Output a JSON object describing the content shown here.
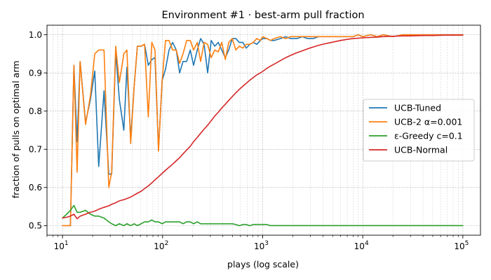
{
  "chart_data": {
    "type": "line",
    "title": "Environment #1 · best-arm pull fraction",
    "xlabel": "plays (log scale)",
    "ylabel": "fraction of pulls on optimal arm",
    "xscale": "log",
    "xlim": [
      7,
      150000
    ],
    "ylim": [
      0.475,
      1.025
    ],
    "grid": true,
    "legend_position": "center-right",
    "x_ticks": [
      {
        "value": 10,
        "base": "10",
        "exp": "1"
      },
      {
        "value": 100,
        "base": "10",
        "exp": "2"
      },
      {
        "value": 1000,
        "base": "10",
        "exp": "3"
      },
      {
        "value": 10000,
        "base": "10",
        "exp": "4"
      },
      {
        "value": 100000,
        "base": "10",
        "exp": "5"
      }
    ],
    "y_ticks": [
      "0.5",
      "0.6",
      "0.7",
      "0.8",
      "0.9",
      "1.0"
    ],
    "series": [
      {
        "name": "UCB-Tuned",
        "color": "#1f77b4",
        "x": [
          10,
          11,
          12,
          13,
          14,
          15,
          17,
          19,
          21,
          23,
          26,
          29,
          31,
          34,
          37,
          41,
          44,
          48,
          52,
          56,
          61,
          66,
          72,
          78,
          84,
          91,
          99,
          107,
          116,
          126,
          137,
          148,
          160,
          174,
          189,
          204,
          222,
          240,
          260,
          282,
          306,
          332,
          360,
          390,
          423,
          458,
          497,
          539,
          584,
          633,
          686,
          744,
          806,
          874,
          948,
          1000,
          1100,
          1200,
          1300,
          1500,
          1700,
          1900,
          2200,
          2500,
          2800,
          3200,
          3600,
          4100,
          4700,
          5300,
          6000,
          7000,
          8000,
          9000,
          10000,
          12000,
          14000,
          16000,
          20000,
          25000,
          30000,
          40000,
          50000,
          70000,
          100000
        ],
        "values": [
          0.5,
          0.5,
          0.5,
          0.92,
          0.72,
          0.93,
          0.77,
          0.83,
          0.905,
          0.655,
          0.853,
          0.635,
          0.635,
          0.955,
          0.83,
          0.75,
          0.915,
          0.73,
          0.865,
          0.97,
          0.97,
          0.975,
          0.92,
          0.935,
          0.94,
          0.7,
          0.88,
          0.91,
          0.96,
          0.98,
          0.96,
          0.9,
          0.93,
          0.93,
          0.96,
          0.92,
          0.96,
          0.99,
          0.975,
          0.9,
          0.985,
          0.97,
          0.98,
          0.96,
          0.94,
          0.96,
          0.99,
          0.99,
          0.98,
          0.98,
          0.965,
          0.975,
          0.98,
          0.975,
          0.985,
          0.99,
          0.99,
          0.985,
          0.985,
          0.99,
          0.995,
          0.99,
          0.99,
          0.995,
          0.99,
          0.99,
          0.995,
          0.995,
          0.995,
          0.995,
          0.995,
          0.995,
          0.995,
          1.0,
          0.995,
          1.0,
          0.995,
          1.0,
          0.995,
          1.0,
          1.0,
          1.0,
          1.0,
          1.0,
          1.0
        ]
      },
      {
        "name": "UCB-2 α=0.001",
        "color": "#ff7f0e",
        "x": [
          10,
          11,
          12,
          13,
          14,
          15,
          17,
          19,
          21,
          23,
          26,
          29,
          31,
          34,
          37,
          41,
          44,
          48,
          52,
          56,
          61,
          66,
          72,
          78,
          84,
          91,
          99,
          107,
          116,
          126,
          137,
          148,
          160,
          174,
          189,
          204,
          222,
          240,
          260,
          282,
          306,
          332,
          360,
          390,
          423,
          458,
          497,
          539,
          584,
          633,
          686,
          744,
          806,
          874,
          948,
          1000,
          1100,
          1200,
          1300,
          1500,
          1700,
          1900,
          2200,
          2500,
          2800,
          3200,
          3600,
          4100,
          4700,
          5300,
          6000,
          7000,
          8000,
          9000,
          10000,
          12000,
          14000,
          16000,
          20000,
          25000,
          30000,
          40000,
          50000,
          70000,
          100000
        ],
        "values": [
          0.5,
          0.5,
          0.5,
          0.92,
          0.64,
          0.93,
          0.765,
          0.84,
          0.95,
          0.96,
          0.96,
          0.6,
          0.64,
          0.97,
          0.875,
          0.95,
          0.96,
          0.715,
          0.865,
          0.97,
          0.97,
          0.975,
          0.785,
          0.98,
          0.96,
          0.695,
          0.88,
          0.985,
          0.985,
          0.96,
          0.96,
          0.925,
          0.95,
          0.985,
          0.985,
          0.96,
          0.98,
          0.93,
          0.98,
          0.975,
          0.94,
          0.96,
          0.955,
          0.98,
          0.935,
          0.98,
          0.99,
          0.96,
          0.97,
          0.965,
          0.975,
          0.975,
          0.98,
          0.99,
          0.985,
          0.995,
          0.99,
          0.985,
          0.99,
          0.995,
          0.99,
          0.995,
          0.995,
          0.995,
          0.995,
          0.995,
          0.995,
          0.995,
          0.995,
          0.995,
          0.995,
          0.995,
          0.995,
          1.0,
          0.995,
          1.0,
          0.995,
          1.0,
          0.995,
          1.0,
          1.0,
          1.0,
          1.0,
          1.0,
          1.0
        ]
      },
      {
        "name": "ε-Greedy c=0.1",
        "color": "#2ca02c",
        "x": [
          10,
          11,
          12,
          13,
          14,
          15,
          17,
          19,
          21,
          23,
          26,
          29,
          31,
          34,
          37,
          41,
          44,
          48,
          52,
          56,
          61,
          66,
          72,
          78,
          84,
          91,
          99,
          107,
          116,
          126,
          137,
          148,
          160,
          174,
          189,
          204,
          222,
          240,
          260,
          282,
          306,
          332,
          360,
          390,
          423,
          458,
          497,
          539,
          584,
          633,
          686,
          744,
          806,
          874,
          948,
          1000,
          1100,
          1200,
          1300,
          1500,
          1700,
          1900,
          2200,
          2500,
          2800,
          3200,
          3600,
          4100,
          4700,
          5300,
          6000,
          7000,
          8000,
          9000,
          10000,
          12000,
          14000,
          16000,
          20000,
          25000,
          30000,
          40000,
          50000,
          70000,
          100000
        ],
        "values": [
          0.52,
          0.53,
          0.54,
          0.553,
          0.535,
          0.535,
          0.54,
          0.53,
          0.525,
          0.525,
          0.52,
          0.51,
          0.505,
          0.5,
          0.505,
          0.5,
          0.505,
          0.5,
          0.505,
          0.5,
          0.505,
          0.51,
          0.51,
          0.515,
          0.51,
          0.51,
          0.505,
          0.51,
          0.51,
          0.51,
          0.51,
          0.51,
          0.505,
          0.51,
          0.51,
          0.505,
          0.51,
          0.505,
          0.505,
          0.505,
          0.505,
          0.505,
          0.505,
          0.505,
          0.505,
          0.505,
          0.505,
          0.503,
          0.5,
          0.503,
          0.503,
          0.5,
          0.503,
          0.503,
          0.503,
          0.503,
          0.503,
          0.5,
          0.5,
          0.5,
          0.5,
          0.5,
          0.5,
          0.5,
          0.5,
          0.5,
          0.5,
          0.5,
          0.5,
          0.5,
          0.5,
          0.5,
          0.5,
          0.5,
          0.5,
          0.5,
          0.5,
          0.5,
          0.5,
          0.5,
          0.5,
          0.5,
          0.5,
          0.5,
          0.5
        ]
      },
      {
        "name": "UCB-Normal",
        "color": "#d62728",
        "x": [
          10,
          11,
          12,
          13,
          14,
          15,
          17,
          19,
          21,
          23,
          26,
          29,
          31,
          34,
          37,
          41,
          44,
          48,
          52,
          56,
          61,
          66,
          72,
          78,
          84,
          91,
          99,
          107,
          116,
          126,
          137,
          148,
          160,
          174,
          189,
          204,
          222,
          240,
          260,
          282,
          306,
          332,
          360,
          390,
          423,
          458,
          497,
          539,
          584,
          633,
          686,
          744,
          806,
          874,
          948,
          1000,
          1100,
          1200,
          1300,
          1500,
          1700,
          1900,
          2200,
          2500,
          2800,
          3200,
          3600,
          4100,
          4700,
          5300,
          6000,
          7000,
          8000,
          9000,
          10000,
          12000,
          14000,
          16000,
          20000,
          25000,
          30000,
          40000,
          50000,
          70000,
          100000
        ],
        "values": [
          0.52,
          0.522,
          0.525,
          0.53,
          0.518,
          0.525,
          0.53,
          0.535,
          0.538,
          0.543,
          0.548,
          0.552,
          0.556,
          0.56,
          0.565,
          0.568,
          0.571,
          0.575,
          0.58,
          0.585,
          0.59,
          0.597,
          0.604,
          0.612,
          0.62,
          0.628,
          0.637,
          0.645,
          0.653,
          0.661,
          0.67,
          0.678,
          0.688,
          0.698,
          0.708,
          0.72,
          0.731,
          0.742,
          0.753,
          0.763,
          0.775,
          0.787,
          0.797,
          0.808,
          0.818,
          0.828,
          0.838,
          0.848,
          0.857,
          0.865,
          0.873,
          0.881,
          0.888,
          0.895,
          0.9,
          0.904,
          0.912,
          0.918,
          0.923,
          0.932,
          0.94,
          0.946,
          0.953,
          0.958,
          0.963,
          0.968,
          0.972,
          0.976,
          0.979,
          0.982,
          0.985,
          0.988,
          0.99,
          0.991,
          0.992,
          0.993,
          0.994,
          0.995,
          0.996,
          0.997,
          0.997,
          0.998,
          0.998,
          0.999,
          0.999
        ]
      }
    ]
  }
}
